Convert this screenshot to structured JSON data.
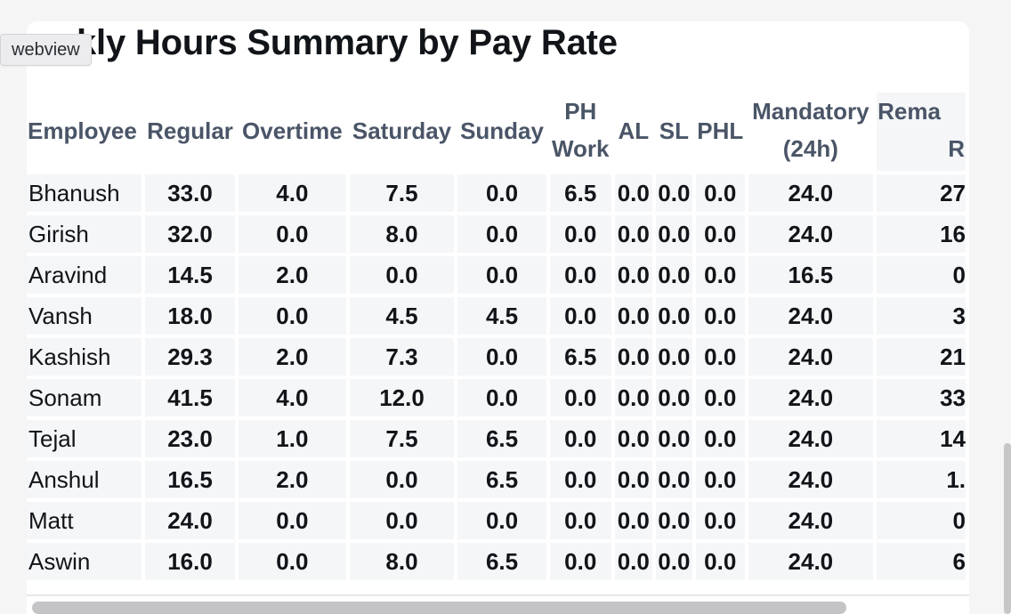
{
  "badge": {
    "label": "webview"
  },
  "title": "kly Hours Summary by Pay Rate",
  "table": {
    "headers": [
      "Employee",
      "Regular",
      "Overtime",
      "Saturday",
      "Sunday",
      "PH Work",
      "AL",
      "SL",
      "PHL",
      "Mandatory (24h)",
      "Rema R"
    ],
    "header_lines": {
      "ph_work": [
        "PH",
        "Work"
      ],
      "mandatory": [
        "Mandatory",
        "(24h)"
      ],
      "rema": [
        "Rema",
        "R"
      ]
    },
    "rows": [
      {
        "employee": "Bhanush",
        "regular": "33.0",
        "overtime": "4.0",
        "saturday": "7.5",
        "sunday": "0.0",
        "ph_work": "6.5",
        "al": "0.0",
        "sl": "0.0",
        "phl": "0.0",
        "mandatory": "24.0",
        "rema": "27"
      },
      {
        "employee": "Girish",
        "regular": "32.0",
        "overtime": "0.0",
        "saturday": "8.0",
        "sunday": "0.0",
        "ph_work": "0.0",
        "al": "0.0",
        "sl": "0.0",
        "phl": "0.0",
        "mandatory": "24.0",
        "rema": "16"
      },
      {
        "employee": "Aravind",
        "regular": "14.5",
        "overtime": "2.0",
        "saturday": "0.0",
        "sunday": "0.0",
        "ph_work": "0.0",
        "al": "0.0",
        "sl": "0.0",
        "phl": "0.0",
        "mandatory": "16.5",
        "rema": "0"
      },
      {
        "employee": "Vansh",
        "regular": "18.0",
        "overtime": "0.0",
        "saturday": "4.5",
        "sunday": "4.5",
        "ph_work": "0.0",
        "al": "0.0",
        "sl": "0.0",
        "phl": "0.0",
        "mandatory": "24.0",
        "rema": "3"
      },
      {
        "employee": "Kashish",
        "regular": "29.3",
        "overtime": "2.0",
        "saturday": "7.3",
        "sunday": "0.0",
        "ph_work": "6.5",
        "al": "0.0",
        "sl": "0.0",
        "phl": "0.0",
        "mandatory": "24.0",
        "rema": "21"
      },
      {
        "employee": "Sonam",
        "regular": "41.5",
        "overtime": "4.0",
        "saturday": "12.0",
        "sunday": "0.0",
        "ph_work": "0.0",
        "al": "0.0",
        "sl": "0.0",
        "phl": "0.0",
        "mandatory": "24.0",
        "rema": "33"
      },
      {
        "employee": "Tejal",
        "regular": "23.0",
        "overtime": "1.0",
        "saturday": "7.5",
        "sunday": "6.5",
        "ph_work": "0.0",
        "al": "0.0",
        "sl": "0.0",
        "phl": "0.0",
        "mandatory": "24.0",
        "rema": "14"
      },
      {
        "employee": "Anshul",
        "regular": "16.5",
        "overtime": "2.0",
        "saturday": "0.0",
        "sunday": "6.5",
        "ph_work": "0.0",
        "al": "0.0",
        "sl": "0.0",
        "phl": "0.0",
        "mandatory": "24.0",
        "rema": "1."
      },
      {
        "employee": "Matt",
        "regular": "24.0",
        "overtime": "0.0",
        "saturday": "0.0",
        "sunday": "0.0",
        "ph_work": "0.0",
        "al": "0.0",
        "sl": "0.0",
        "phl": "0.0",
        "mandatory": "24.0",
        "rema": "0"
      },
      {
        "employee": "Aswin",
        "regular": "16.0",
        "overtime": "0.0",
        "saturday": "8.0",
        "sunday": "6.5",
        "ph_work": "0.0",
        "al": "0.0",
        "sl": "0.0",
        "phl": "0.0",
        "mandatory": "24.0",
        "rema": "6"
      }
    ]
  },
  "colors": {
    "header_text": "#4a5567",
    "cell_background": "#f5f6f8",
    "scrollbar_thumb": "#c4c4c6"
  }
}
